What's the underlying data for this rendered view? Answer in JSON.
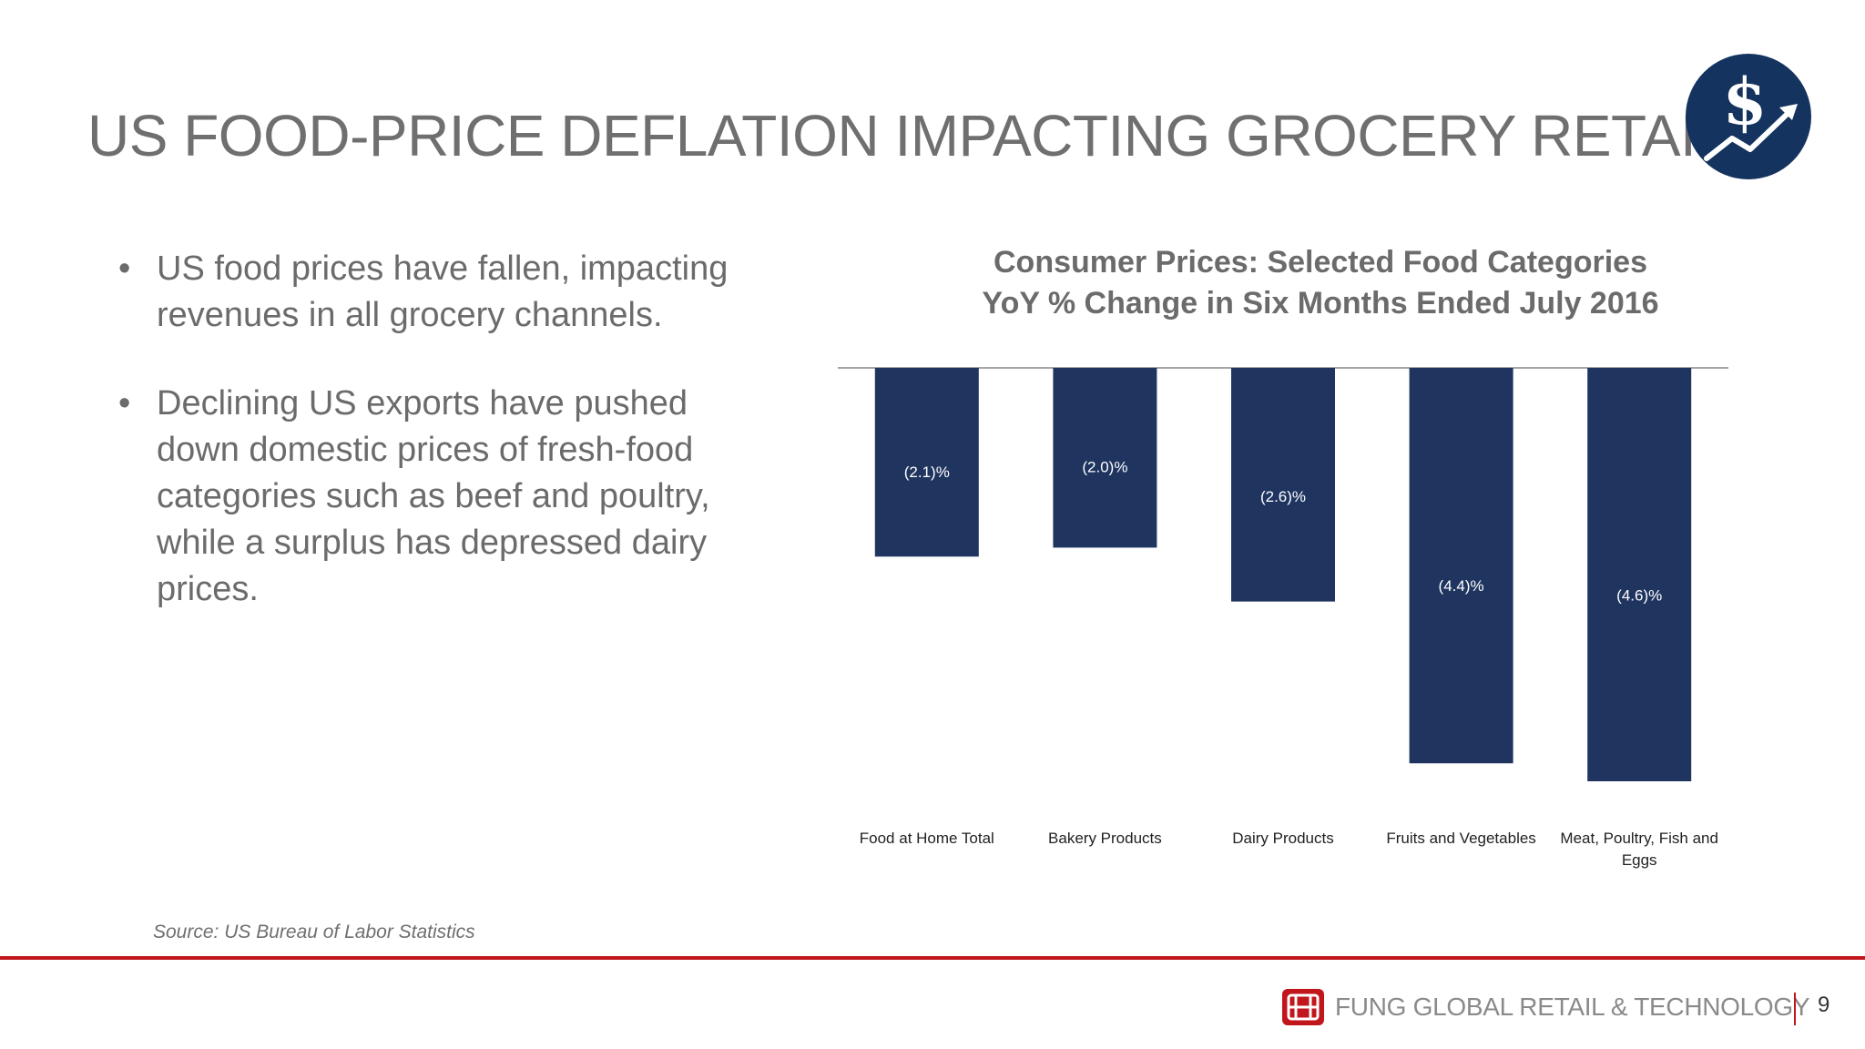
{
  "slide": {
    "title": "US FOOD-PRICE DEFLATION IMPACTING GROCERY RETAIL",
    "bullets": [
      "US food prices have fallen, impacting revenues in all grocery channels.",
      "Declining US exports have pushed down domestic prices of fresh-food categories such as beef and poultry, while a surplus has depressed dairy prices."
    ],
    "source": "Source: US Bureau of Labor Statistics",
    "brand": "FUNG GLOBAL RETAIL & TECHNOLOGY",
    "page_number": "9",
    "logo_icon": "dollar-growth-icon",
    "footer_logo_icon": "fung-group-logo-icon"
  },
  "colors": {
    "bar": "#1f3560",
    "accent_red": "#c0161c",
    "title_gray": "#6f6f6f"
  },
  "chart_data": {
    "type": "bar",
    "title": "Consumer Prices: Selected Food Categories",
    "subtitle": "YoY % Change in Six Months Ended July 2016",
    "categories": [
      "Food at Home Total",
      "Bakery Products",
      "Dairy Products",
      "Fruits and Vegetables",
      "Meat, Poultry, Fish and Eggs"
    ],
    "values": [
      -2.1,
      -2.0,
      -2.6,
      -4.4,
      -4.6
    ],
    "data_labels": [
      "(2.1)%",
      "(2.0)%",
      "(2.6)%",
      "(4.4)%",
      "(4.6)%"
    ],
    "xlabel": "",
    "ylabel": "",
    "ylim": [
      -4.6,
      0
    ],
    "grid": false,
    "legend": "none"
  }
}
